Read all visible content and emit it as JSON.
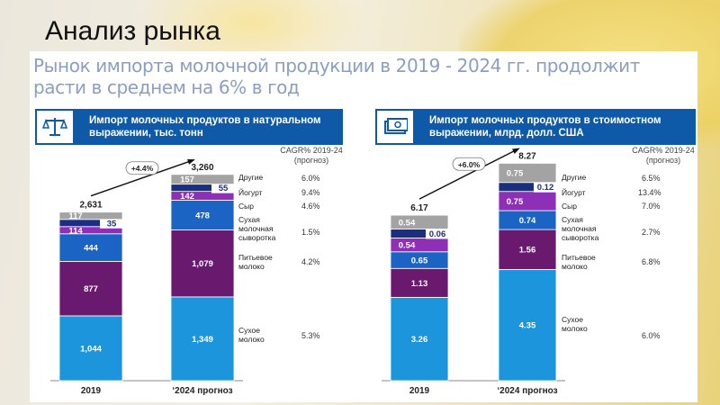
{
  "slide_title": "Анализ рынка",
  "headline": "Рынок импорта молочной продукции в 2019 - 2024 гг. продолжит расти в среднем на 6% в год",
  "colors": {
    "header_blue": "#0f5aa8",
    "other_gray": "#a3a3a3",
    "yogurt_navy": "#1b2f80",
    "cheese_violet": "#8e2fb8",
    "whey_blue": "#1c64c4",
    "drinking_milk_purple": "#6a1a6e",
    "dry_milk_cyan": "#1d95dc"
  },
  "chart_data": [
    {
      "type": "bar",
      "stacked": true,
      "title": "Импорт молочных продуктов в натуральном выражении, тыс. тонн",
      "categories": [
        "2019",
        "‘2024 прогноз"
      ],
      "totals": [
        "2,631",
        "3,260"
      ],
      "growth_label": "+4.4%",
      "cagr_header": "CAGR% 2019-24 (прогноз)",
      "series": [
        {
          "name": "Сухое молоко",
          "values": [
            1044,
            1349
          ],
          "labels": [
            "1,044",
            "1,349"
          ],
          "cagr": "5.3%"
        },
        {
          "name": "Питьевое молоко",
          "values": [
            877,
            1079
          ],
          "labels": [
            "877",
            "1,079"
          ],
          "cagr": "4.2%"
        },
        {
          "name": "Сухая молочная сыворотка",
          "values": [
            444,
            478
          ],
          "labels": [
            "444",
            "478"
          ],
          "cagr": "1.5%"
        },
        {
          "name": "Сыр",
          "values": [
            114,
            142
          ],
          "labels": [
            "114",
            "142"
          ],
          "cagr": "4.6%"
        },
        {
          "name": "Йогурт",
          "values": [
            35,
            55
          ],
          "labels": [
            "35",
            "55"
          ],
          "cagr": "9.4%"
        },
        {
          "name": "Другие",
          "values": [
            117,
            157
          ],
          "labels": [
            "117",
            "157"
          ],
          "cagr": "6.0%"
        }
      ]
    },
    {
      "type": "bar",
      "stacked": true,
      "title": "Импорт молочных продуктов в стоимостном выражении, млрд. долл. США",
      "categories": [
        "2019",
        "‘2024 прогноз"
      ],
      "totals": [
        "6.17",
        "8.27"
      ],
      "growth_label": "+6.0%",
      "cagr_header": "CAGR% 2019-24 (прогноз)",
      "series": [
        {
          "name": "Сухое молоко",
          "values": [
            3.26,
            4.35
          ],
          "labels": [
            "3.26",
            "4.35"
          ],
          "cagr": "6.0%"
        },
        {
          "name": "Питьевое молоко",
          "values": [
            1.13,
            1.56
          ],
          "labels": [
            "1.13",
            "1.56"
          ],
          "cagr": "6.8%"
        },
        {
          "name": "Сухая молочная сыворотка",
          "values": [
            0.65,
            0.74
          ],
          "labels": [
            "0.65",
            "0.74"
          ],
          "cagr": "2.7%"
        },
        {
          "name": "Сыр",
          "values": [
            0.54,
            0.75
          ],
          "labels": [
            "0.54",
            "0.75"
          ],
          "cagr": "7.0%"
        },
        {
          "name": "Йогурт",
          "values": [
            0.06,
            0.12
          ],
          "labels": [
            "0.06",
            "0.12"
          ],
          "cagr": "13.4%"
        },
        {
          "name": "Другие",
          "values": [
            0.54,
            0.75
          ],
          "labels": [
            "0.54",
            "0.75"
          ],
          "cagr": "6.5%"
        }
      ]
    }
  ],
  "legend": {
    "other": "Другие",
    "yogurt": "Йогурт",
    "cheese": "Сыр",
    "whey": "Сухая молочная сыворотка",
    "drinking_milk": "Питьевое молоко",
    "dry_milk": "Сухое молоко"
  }
}
